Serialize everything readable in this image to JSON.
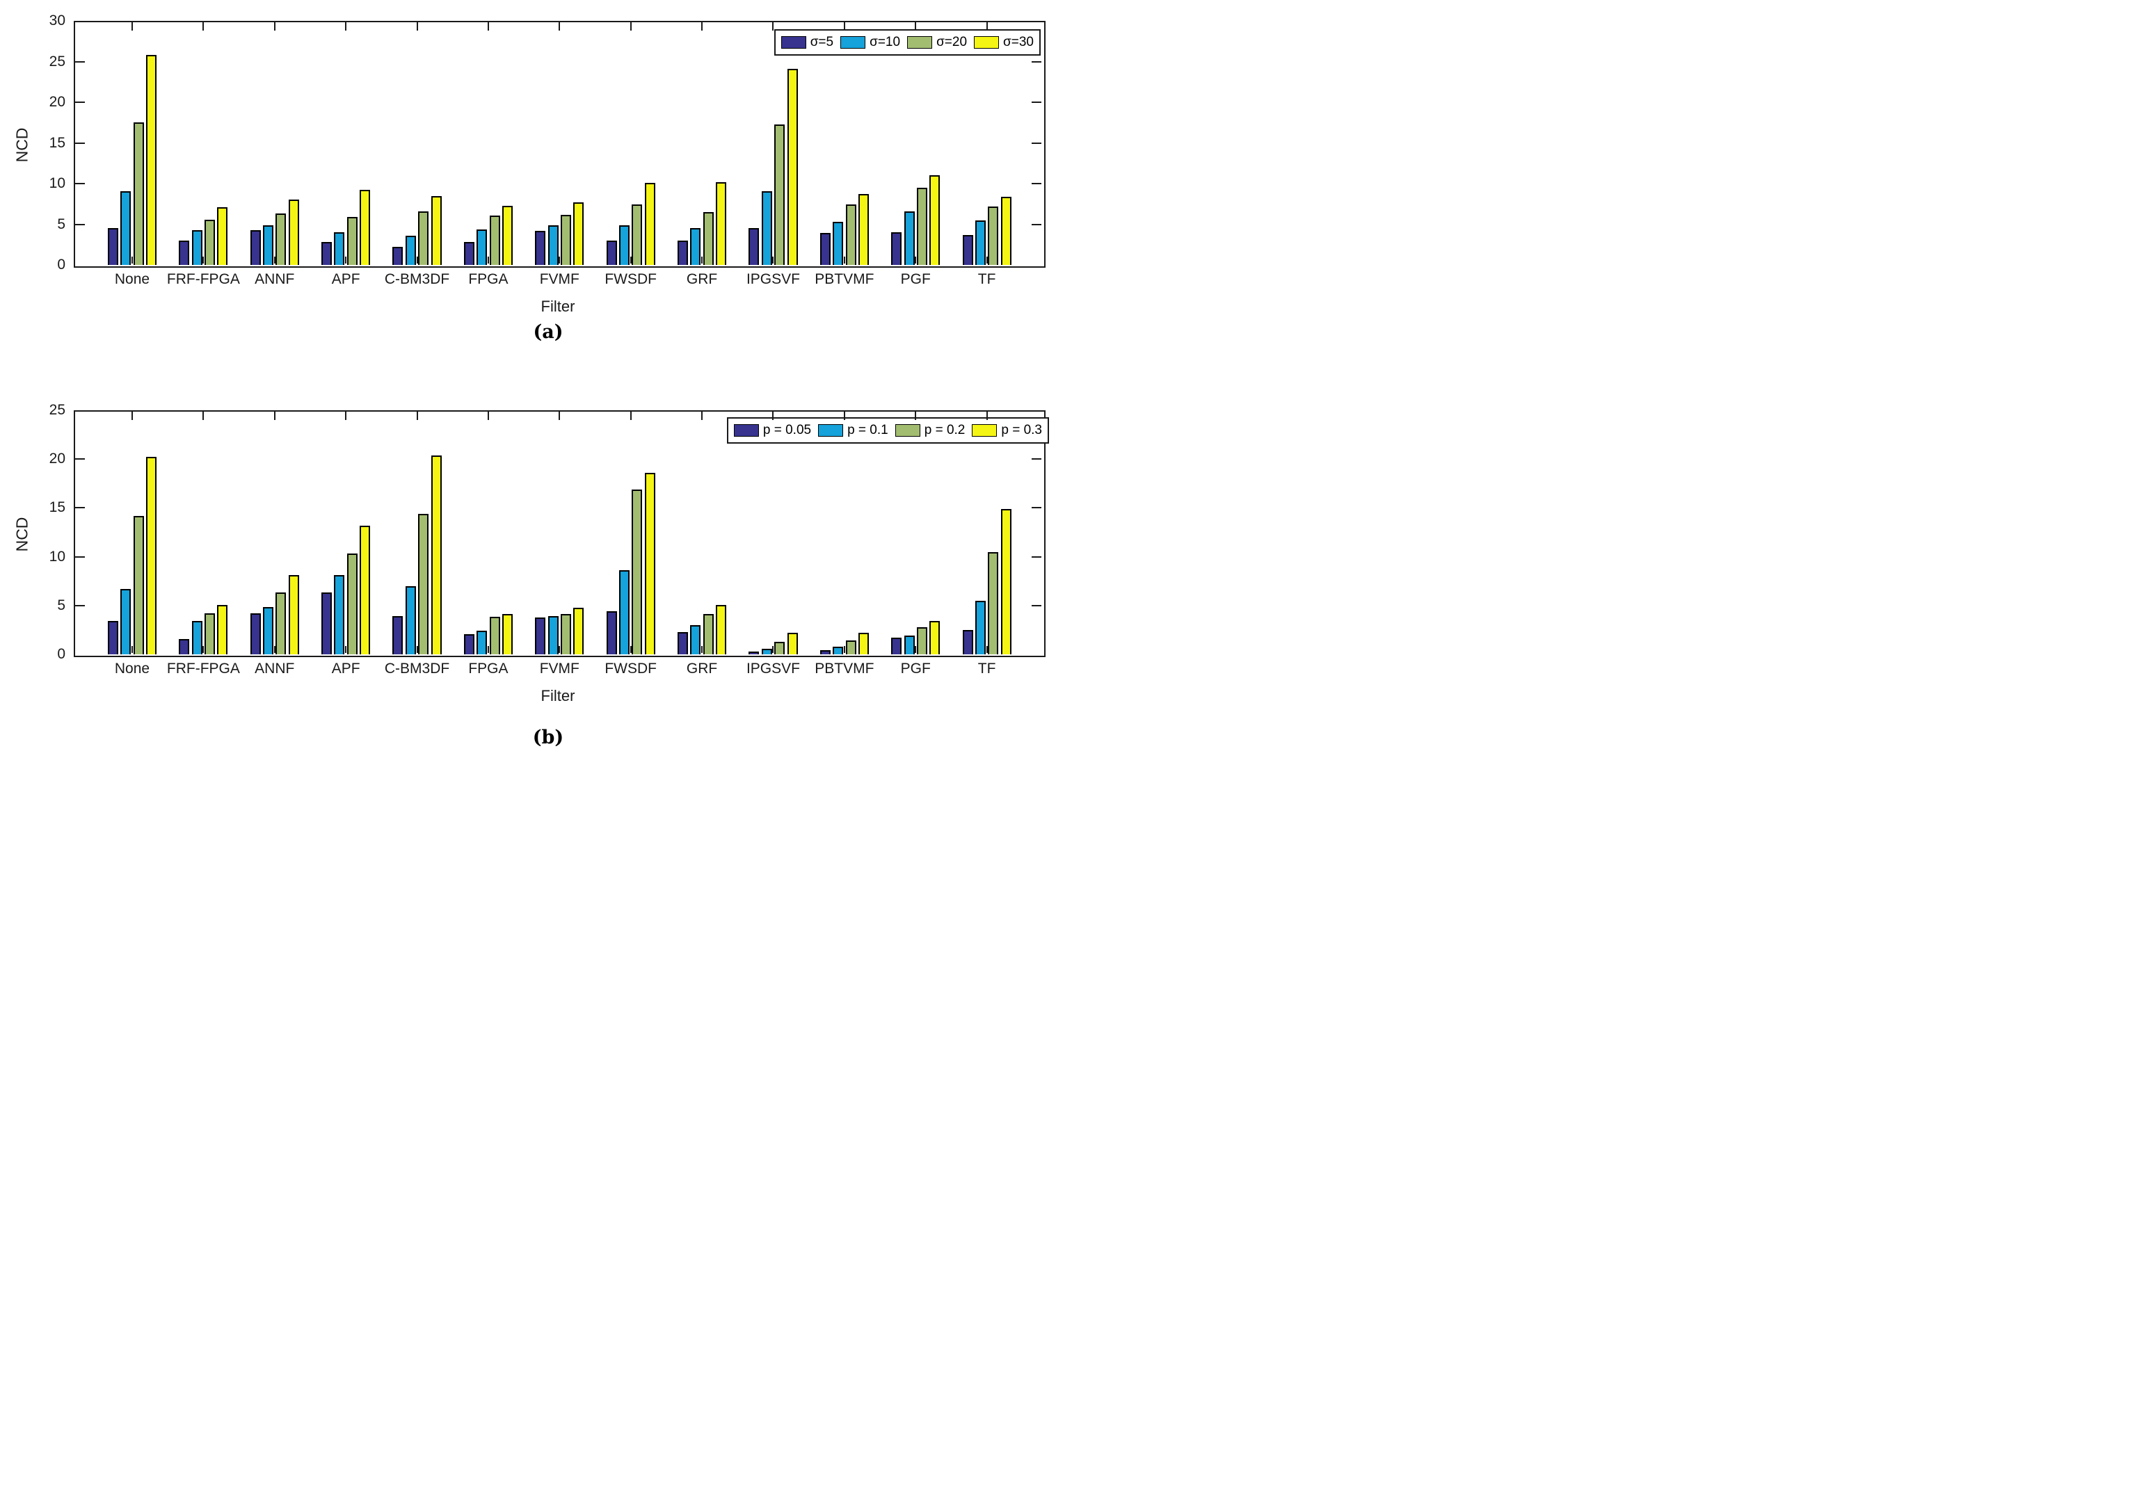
{
  "figure": {
    "background": "#ffffff",
    "axis_color": "#1a1a1a"
  },
  "chart_data": [
    {
      "id": "a",
      "type": "bar",
      "caption": "(a)",
      "ylabel": "NCD",
      "xlabel": "Filter",
      "ylim": [
        0,
        30
      ],
      "ytick_step": 5,
      "ytick_labels": [
        "0",
        "5",
        "10",
        "15",
        "20",
        "25",
        "30"
      ],
      "grid": false,
      "legend_position": "top-right-inside",
      "categories": [
        "None",
        "FRF-FPGA",
        "ANNF",
        "APF",
        "C-BM3DF",
        "FPGA",
        "FVMF",
        "FWSDF",
        "GRF",
        "IPGSVF",
        "PBTVMF",
        "PGF",
        "TF"
      ],
      "series": [
        {
          "name": "σ=5",
          "color": "#37338F",
          "values": [
            4.5,
            3.0,
            4.25,
            2.85,
            2.2,
            2.8,
            4.15,
            3.0,
            2.95,
            4.5,
            3.9,
            4.0,
            3.7
          ]
        },
        {
          "name": "σ=10",
          "color": "#16A2DA",
          "values": [
            9.1,
            4.3,
            4.85,
            4.05,
            3.6,
            4.35,
            4.85,
            4.85,
            4.55,
            9.05,
            5.3,
            6.6,
            5.5
          ]
        },
        {
          "name": "σ=20",
          "color": "#A3BD70",
          "values": [
            17.5,
            5.55,
            6.3,
            5.9,
            6.55,
            6.05,
            6.15,
            7.4,
            6.5,
            17.3,
            7.45,
            9.5,
            7.2
          ]
        },
        {
          "name": "σ=30",
          "color": "#F4F512",
          "values": [
            25.8,
            7.1,
            8.05,
            9.2,
            8.5,
            7.25,
            7.65,
            10.1,
            10.15,
            24.1,
            8.75,
            11.0,
            8.4
          ]
        }
      ]
    },
    {
      "id": "b",
      "type": "bar",
      "caption": "(b)",
      "ylabel": "NCD",
      "xlabel": "Filter",
      "ylim": [
        0,
        25
      ],
      "ytick_step": 5,
      "ytick_labels": [
        "0",
        "5",
        "10",
        "15",
        "20",
        "25"
      ],
      "grid": false,
      "legend_position": "top-right-inside",
      "categories": [
        "None",
        "FRF-FPGA",
        "ANNF",
        "APF",
        "C-BM3DF",
        "FPGA",
        "FVMF",
        "FWSDF",
        "GRF",
        "IPGSVF",
        "PBTVMF",
        "PGF",
        "TF"
      ],
      "series": [
        {
          "name": "p = 0.05",
          "color": "#37338F",
          "values": [
            3.45,
            1.6,
            4.2,
            6.35,
            3.9,
            2.1,
            3.8,
            4.45,
            2.3,
            0.3,
            0.45,
            1.7,
            2.5
          ]
        },
        {
          "name": "p = 0.1",
          "color": "#16A2DA",
          "values": [
            6.7,
            3.4,
            4.85,
            8.1,
            7.0,
            2.4,
            3.95,
            8.6,
            3.0,
            0.6,
            0.75,
            1.9,
            5.45
          ]
        },
        {
          "name": "p = 0.2",
          "color": "#A3BD70",
          "values": [
            14.2,
            4.2,
            6.35,
            10.3,
            14.4,
            3.85,
            4.15,
            16.9,
            4.1,
            1.25,
            1.45,
            2.8,
            10.5
          ]
        },
        {
          "name": "p = 0.3",
          "color": "#F4F512",
          "values": [
            20.25,
            5.05,
            8.15,
            13.2,
            20.4,
            4.1,
            4.8,
            18.6,
            5.05,
            2.2,
            2.2,
            3.4,
            14.9
          ]
        }
      ]
    }
  ]
}
